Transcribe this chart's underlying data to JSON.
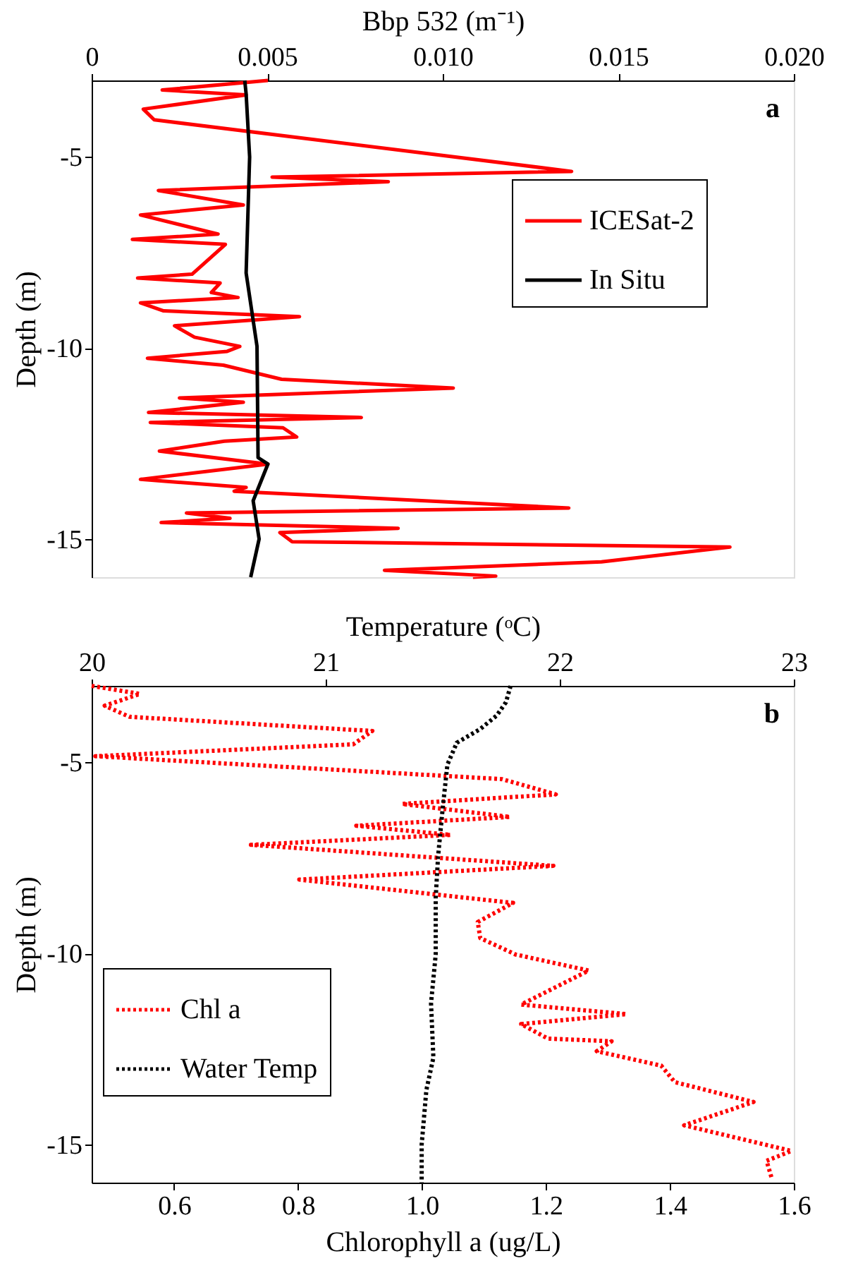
{
  "chart_data": [
    {
      "type": "line",
      "xlabel": "Bbp 532 (m⁻¹)",
      "ylabel": "Depth (m)",
      "xlim": [
        0,
        0.02
      ],
      "xticks": [
        0,
        0.005,
        {
          "value": 0.01,
          "label": "0.010"
        },
        0.015,
        {
          "value": 0.02,
          "label": "0.020"
        }
      ],
      "ylim": [
        -16,
        -3
      ],
      "yticks": [
        -5,
        -10,
        -15
      ],
      "grid": false,
      "legend": "top right",
      "annotations": [
        "a"
      ],
      "series": [
        {
          "name": "ICESat-2",
          "color": "#ff0000",
          "line_style": "solid",
          "x": [
            0.00502,
            0.00201,
            0.0044,
            0.00147,
            0.00178,
            0.01367,
            0.00514,
            0.00845,
            0.0019,
            0.00432,
            0.00139,
            0.0036,
            0.00116,
            0.00381,
            0.00286,
            0.00131,
            0.00366,
            0.00341,
            0.00417,
            0.00139,
            0.00205,
            0.00592,
            0.00236,
            0.00293,
            0.00422,
            0.00386,
            0.00159,
            0.00375,
            0.00541,
            0.0103,
            0.0025,
            0.00432,
            0.00162,
            0.00768,
            0.00167,
            0.00545,
            0.00584,
            0.00378,
            0.00193,
            0.00502,
            0.00139,
            0.0044,
            0.00406,
            0.01359,
            0.0027,
            0.00394,
            0.00198,
            0.00873,
            0.00536,
            0.00571,
            0.01818,
            0.01452,
            0.00834,
            0.01151,
            0.01086
          ],
          "values": [
            -3.0,
            -3.25,
            -3.38,
            -3.75,
            -4.03,
            -5.38,
            -5.53,
            -5.65,
            -5.88,
            -6.26,
            -6.52,
            -7.02,
            -7.16,
            -7.29,
            -8.07,
            -8.17,
            -8.3,
            -8.55,
            -8.68,
            -8.82,
            -9.03,
            -9.18,
            -9.42,
            -9.72,
            -9.96,
            -10.09,
            -10.27,
            -10.45,
            -10.82,
            -11.05,
            -11.31,
            -11.42,
            -11.69,
            -11.82,
            -11.95,
            -12.09,
            -12.33,
            -12.44,
            -12.7,
            -13.04,
            -13.44,
            -13.65,
            -13.75,
            -14.19,
            -14.32,
            -14.46,
            -14.57,
            -14.72,
            -14.83,
            -15.07,
            -15.21,
            -15.6,
            -15.82,
            -15.97,
            -16.0
          ]
        },
        {
          "name": "In Situ",
          "color": "#000000",
          "line_style": "solid",
          "x": [
            0.00436,
            0.0044,
            0.0045,
            0.0044,
            0.00471,
            0.00474,
            0.00502,
            0.0046,
            0.00477,
            0.00453
          ],
          "values": [
            -3.0,
            -3.35,
            -5.0,
            -8.04,
            -9.96,
            -12.87,
            -13.04,
            -14.0,
            -15.0,
            -16.0
          ]
        }
      ]
    },
    {
      "type": "line",
      "x2label": "Temperature (ᵒC)",
      "xlabel": "Chlorophyll a (ug/L)",
      "ylabel": "Depth (m)",
      "xlim": [
        0.467,
        1.6
      ],
      "xticks": [
        0.6,
        0.8,
        {
          "value": 1.0,
          "label": "1.0"
        },
        1.2,
        1.4,
        1.6
      ],
      "x2lim": [
        20,
        23
      ],
      "x2ticks": [
        20,
        21,
        22,
        23
      ],
      "ylim": [
        -16,
        -3
      ],
      "yticks": [
        -5,
        -10,
        -15
      ],
      "grid": false,
      "legend": "left",
      "annotations": [
        "b"
      ],
      "series": [
        {
          "name": "Chl a",
          "color": "#ff0000",
          "line_style": "dotted",
          "x": [
            0.467,
            0.545,
            0.488,
            0.528,
            0.92,
            0.889,
            0.473,
            1.129,
            1.216,
            0.968,
            1.142,
            0.894,
            1.046,
            0.724,
            1.212,
            0.802,
            1.147,
            1.09,
            1.094,
            1.151,
            1.269,
            1.16,
            1.33,
            1.16,
            1.203,
            1.306,
            1.282,
            1.386,
            1.408,
            1.535,
            1.423,
            1.596,
            1.556,
            1.565
          ],
          "values": [
            -3.0,
            -3.21,
            -3.52,
            -3.81,
            -4.18,
            -4.53,
            -4.84,
            -5.44,
            -5.84,
            -6.09,
            -6.43,
            -6.66,
            -6.9,
            -7.16,
            -7.71,
            -8.07,
            -8.68,
            -9.18,
            -9.6,
            -10.03,
            -10.45,
            -11.34,
            -11.59,
            -11.85,
            -12.23,
            -12.3,
            -12.56,
            -12.94,
            -13.37,
            -13.89,
            -14.5,
            -15.17,
            -15.43,
            -15.92
          ]
        },
        {
          "name": "Water Temp",
          "color": "#000000",
          "line_style": "dotted",
          "axis": "x2",
          "x": [
            21.79,
            21.77,
            21.73,
            21.66,
            21.56,
            21.52,
            21.5,
            21.48,
            21.47,
            21.47,
            21.45,
            21.46,
            21.43,
            21.41,
            21.41
          ],
          "values": [
            -3.0,
            -3.43,
            -3.78,
            -4.13,
            -4.49,
            -5.06,
            -6.19,
            -7.47,
            -8.54,
            -10.03,
            -11.31,
            -12.73,
            -13.58,
            -15.0,
            -16.0
          ]
        }
      ]
    }
  ]
}
